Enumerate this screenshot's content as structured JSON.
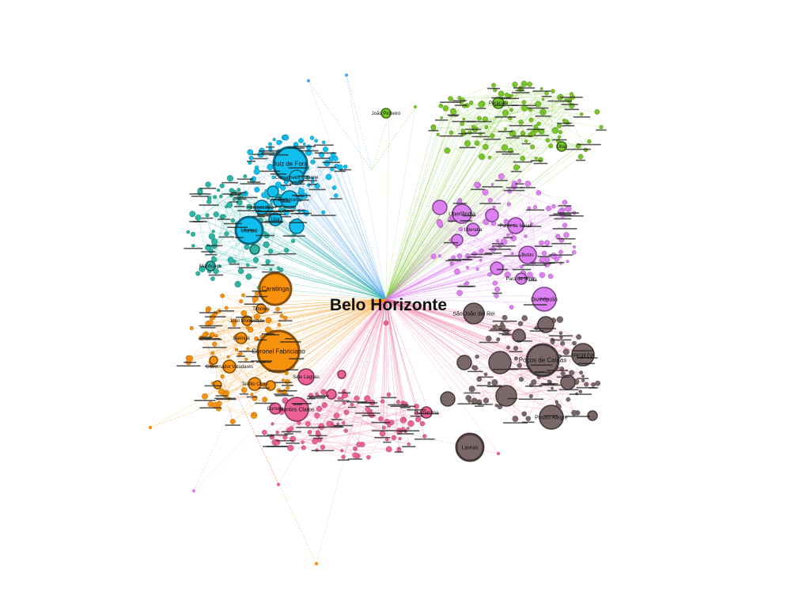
{
  "graph": {
    "hub": {
      "label": "Belo Horizonte"
    },
    "colors": {
      "teal": "#2bb5a5",
      "blue": "#10bfee",
      "green": "#79c62a",
      "violet": "#dd80f2",
      "brown": "#7a6868",
      "pink": "#ec6296",
      "orange": "#f7920f",
      "skyedge": "#5aa8f0"
    },
    "major_cities": [
      {
        "label": "Juiz de Fora",
        "cluster": "blue"
      },
      {
        "label": "Barbacena",
        "cluster": "blue"
      },
      {
        "label": "Leopoldina",
        "cluster": "blue"
      },
      {
        "label": "Muriaé",
        "cluster": "blue"
      },
      {
        "label": "Ubá",
        "cluster": "blue"
      },
      {
        "label": "Conselheiro Lafaiete",
        "cluster": "blue"
      },
      {
        "label": "Manhuaçu",
        "cluster": "teal"
      },
      {
        "label": "Caratinga",
        "cluster": "orange"
      },
      {
        "label": "Coronel Fabriciano",
        "cluster": "orange"
      },
      {
        "label": "Ipatinga",
        "cluster": "orange"
      },
      {
        "label": "Governador Valadares",
        "cluster": "orange"
      },
      {
        "label": "Teófilo Otoni",
        "cluster": "orange"
      },
      {
        "label": "Timóteo",
        "cluster": "orange"
      },
      {
        "label": "João Monlevade",
        "cluster": "orange"
      },
      {
        "label": "Uberlândia",
        "cluster": "violet"
      },
      {
        "label": "Uberaba",
        "cluster": "violet"
      },
      {
        "label": "Patos de Minas",
        "cluster": "violet"
      },
      {
        "label": "Divinópolis",
        "cluster": "violet"
      },
      {
        "label": "Betim",
        "cluster": "violet"
      },
      {
        "label": "Pará de Minas",
        "cluster": "violet"
      },
      {
        "label": "Poços de Caldas",
        "cluster": "brown"
      },
      {
        "label": "Varginha",
        "cluster": "brown"
      },
      {
        "label": "Pouso Alegre",
        "cluster": "brown"
      },
      {
        "label": "Lavras",
        "cluster": "brown"
      },
      {
        "label": "São João del Rei",
        "cluster": "brown"
      },
      {
        "label": "Montes Claros",
        "cluster": "pink"
      },
      {
        "label": "Sete Lagoas",
        "cluster": "pink"
      },
      {
        "label": "Curvelo",
        "cluster": "pink"
      },
      {
        "label": "Diamantina",
        "cluster": "pink"
      },
      {
        "label": "Unaí",
        "cluster": "green"
      },
      {
        "label": "Paracatu",
        "cluster": "green"
      },
      {
        "label": "João Pinheiro",
        "cluster": "green"
      }
    ]
  }
}
